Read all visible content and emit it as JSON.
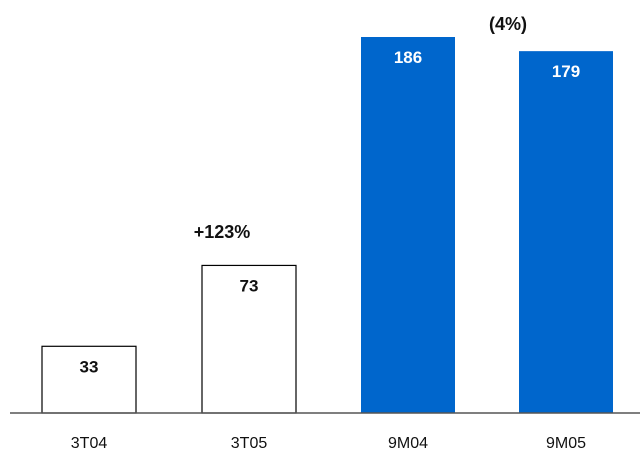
{
  "chart_data": {
    "type": "bar",
    "categories": [
      "3T04",
      "3T05",
      "9M04",
      "9M05"
    ],
    "values": [
      33,
      73,
      186,
      179
    ],
    "data_labels": [
      "33",
      "73",
      "186",
      "179"
    ],
    "bar_styles": [
      "outline",
      "outline",
      "filled",
      "filled"
    ],
    "annotations": [
      {
        "text": "+123%",
        "between": [
          "3T04",
          "3T05"
        ]
      },
      {
        "text": "(4%)",
        "between": [
          "9M04",
          "9M05"
        ]
      }
    ],
    "title": "",
    "xlabel": "",
    "ylabel": "",
    "ylim": [
      0,
      186
    ],
    "grid": false,
    "legend": "none",
    "colors": {
      "filled": "#0066CC",
      "outline_stroke": "#000000",
      "outline_fill": "#FFFFFF",
      "filled_label": "#FFFFFF",
      "outline_label": "#111111"
    }
  }
}
